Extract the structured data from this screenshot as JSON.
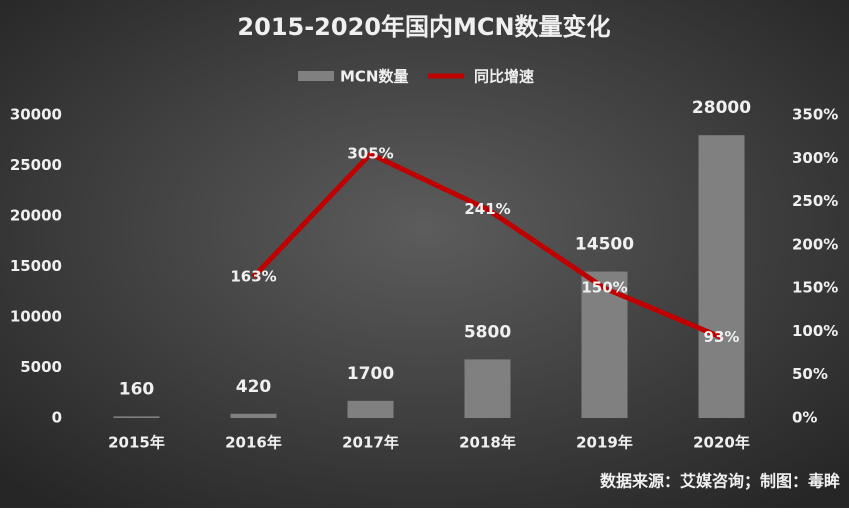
{
  "chart_data": {
    "type": "bar_line",
    "title": "2015-2020年国内MCN数量变化",
    "categories": [
      "2015年",
      "2016年",
      "2017年",
      "2018年",
      "2019年",
      "2020年"
    ],
    "series": [
      {
        "name": "MCN数量",
        "color": "#808080",
        "type": "bar",
        "values": [
          160,
          420,
          1700,
          5800,
          14500,
          28000
        ]
      },
      {
        "name": "同比增速",
        "color": "#c00000",
        "type": "line",
        "axis": "y2",
        "values": [
          null,
          163,
          305,
          241,
          150,
          93
        ],
        "value_labels": [
          null,
          "163%",
          "305%",
          "241%",
          "150%",
          "93%"
        ]
      }
    ],
    "ylim": [
      0,
      30000
    ],
    "yticks": [
      0,
      5000,
      10000,
      15000,
      20000,
      25000,
      30000
    ],
    "y2lim": [
      0,
      350
    ],
    "y2ticks": [
      {
        "value": 0,
        "label": "0%"
      },
      {
        "value": 50,
        "label": "50%"
      },
      {
        "value": 100,
        "label": "100%"
      },
      {
        "value": 150,
        "label": "150%"
      },
      {
        "value": 200,
        "label": "200%"
      },
      {
        "value": 250,
        "label": "250%"
      },
      {
        "value": 300,
        "label": "300%"
      },
      {
        "value": 350,
        "label": "350%"
      }
    ],
    "legend": "top",
    "source": "数据来源：艾媒咨询；制图：毒眸"
  }
}
